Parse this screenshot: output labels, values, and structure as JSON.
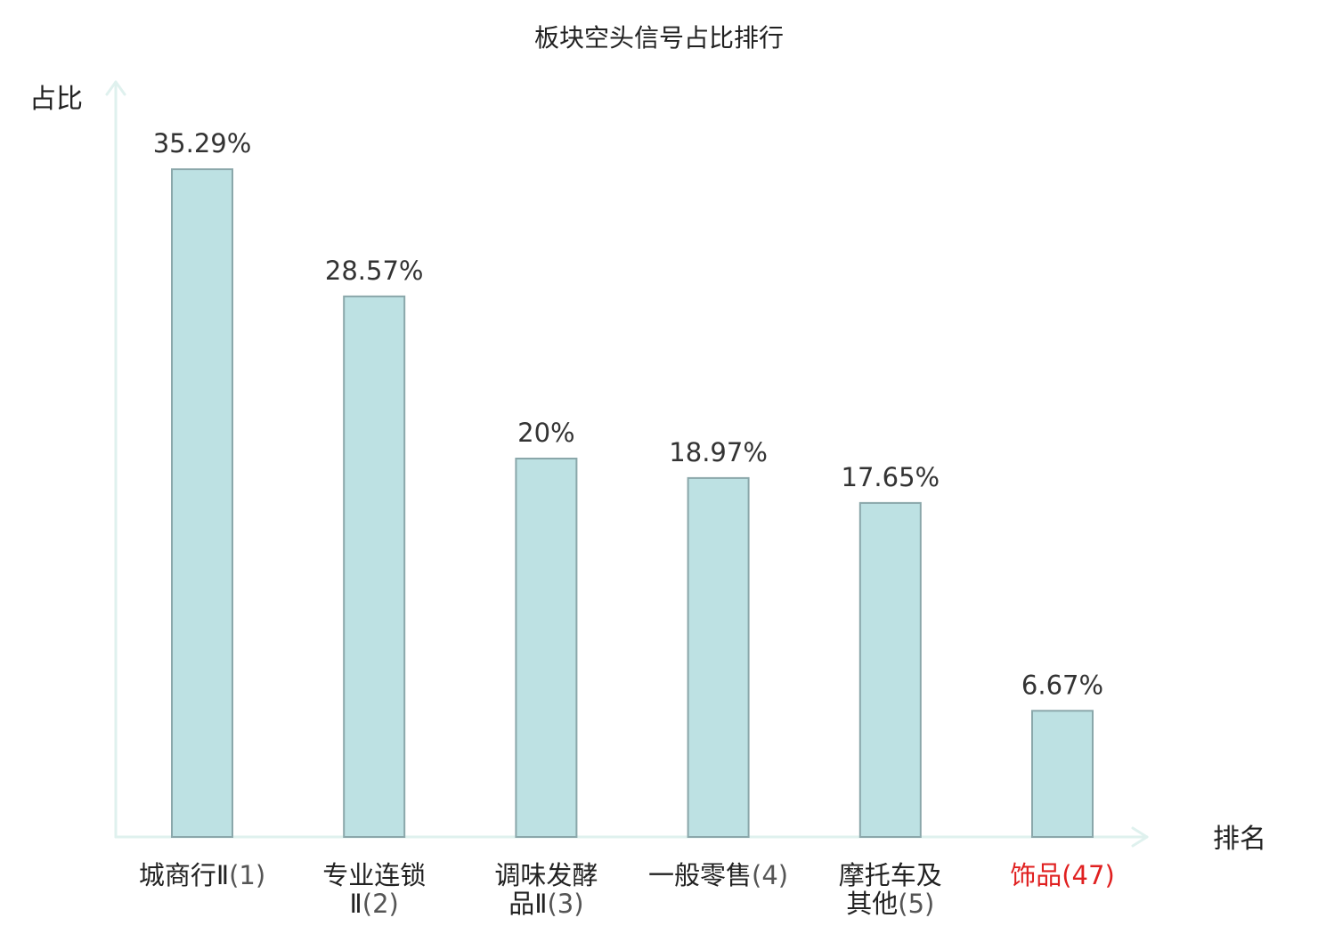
{
  "chart_data": {
    "type": "bar",
    "title": "板块空头信号占比排行",
    "ylabel": "占比",
    "xlabel": "排名",
    "ylim": [
      0,
      40
    ],
    "categories": [
      {
        "lines": [
          "城商行Ⅱ"
        ],
        "rank": "(1)",
        "highlight": false
      },
      {
        "lines": [
          "专业连锁",
          "Ⅱ"
        ],
        "rank": "(2)",
        "highlight": false
      },
      {
        "lines": [
          "调味发酵",
          "品Ⅱ"
        ],
        "rank": "(3)",
        "highlight": false
      },
      {
        "lines": [
          "一般零售"
        ],
        "rank": "(4)",
        "highlight": false
      },
      {
        "lines": [
          "摩托车及",
          "其他"
        ],
        "rank": "(5)",
        "highlight": false
      },
      {
        "lines": [
          "饰品"
        ],
        "rank": "(47)",
        "highlight": true
      }
    ],
    "values": [
      35.29,
      28.57,
      20,
      18.97,
      17.65,
      6.67
    ],
    "value_labels": [
      "35.29%",
      "28.57%",
      "20%",
      "18.97%",
      "17.65%",
      "6.67%"
    ],
    "grid": false,
    "colors": {
      "bar_fill": "#bde1e3",
      "bar_stroke": "#8aa7aa",
      "axis": "#dff1ee",
      "highlight_text": "#e02020"
    }
  }
}
